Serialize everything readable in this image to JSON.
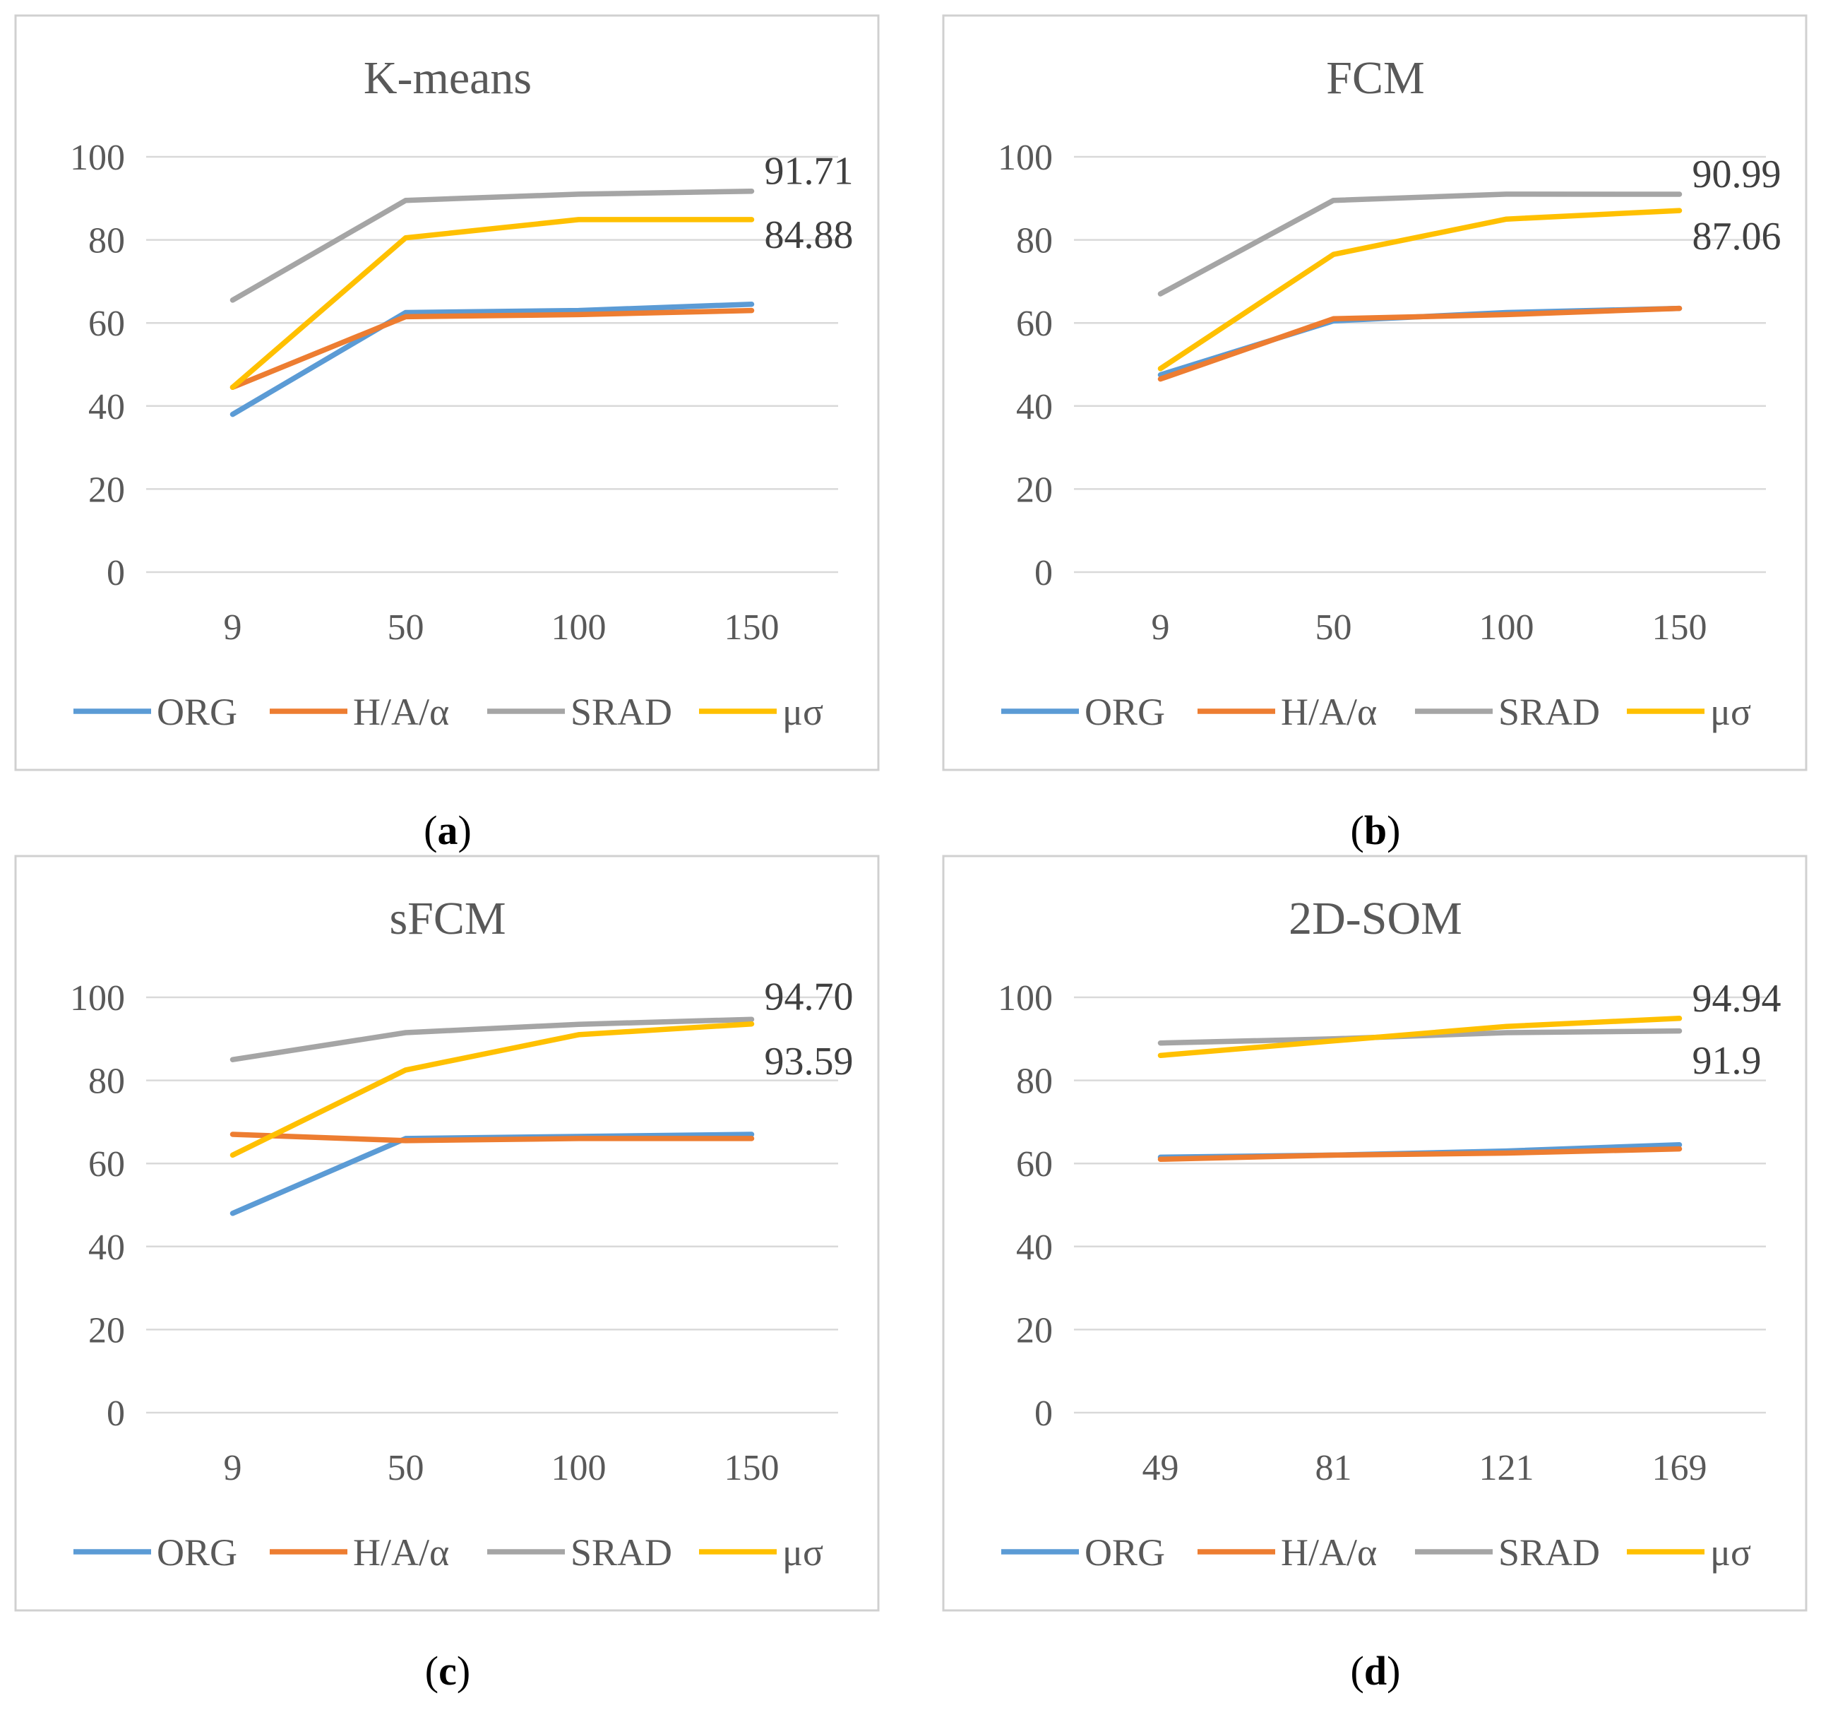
{
  "figure": {
    "colors": {
      "ORG": "#5B9BD5",
      "H/A/α": "#ED7D31",
      "SRAD": "#A5A5A5",
      "μσ": "#FFC000",
      "grid": "#D9D9D9",
      "border": "#D0D0D0",
      "text": "#595959"
    }
  },
  "chart_data": [
    {
      "type": "line",
      "panel": "a",
      "panel_label": "a",
      "title": "K-means",
      "categories": [
        "9",
        "50",
        "100",
        "150"
      ],
      "ylim": [
        0,
        100
      ],
      "yticks": [
        0,
        20,
        40,
        60,
        80,
        100
      ],
      "series": [
        {
          "name": "ORG",
          "values": [
            38,
            62.5,
            63,
            64.5
          ]
        },
        {
          "name": "H/A/α",
          "values": [
            44.5,
            61.5,
            62,
            63
          ]
        },
        {
          "name": "SRAD",
          "values": [
            65.5,
            89.5,
            91,
            91.71
          ]
        },
        {
          "name": "μσ",
          "values": [
            44.5,
            80.5,
            84.88,
            84.88
          ]
        }
      ],
      "annotations": [
        {
          "text": "91.71",
          "series": "SRAD"
        },
        {
          "text": "84.88",
          "series": "μσ"
        }
      ],
      "legend": "bottom"
    },
    {
      "type": "line",
      "panel": "b",
      "panel_label": "b",
      "title": "FCM",
      "categories": [
        "9",
        "50",
        "100",
        "150"
      ],
      "ylim": [
        0,
        100
      ],
      "yticks": [
        0,
        20,
        40,
        60,
        80,
        100
      ],
      "series": [
        {
          "name": "ORG",
          "values": [
            47.5,
            60.5,
            62.5,
            63.5
          ]
        },
        {
          "name": "H/A/α",
          "values": [
            46.5,
            61,
            62,
            63.5
          ]
        },
        {
          "name": "SRAD",
          "values": [
            67,
            89.5,
            91,
            90.99
          ]
        },
        {
          "name": "μσ",
          "values": [
            49,
            76.5,
            85,
            87.06
          ]
        }
      ],
      "annotations": [
        {
          "text": "90.99",
          "series": "SRAD"
        },
        {
          "text": "87.06",
          "series": "μσ"
        }
      ],
      "legend": "bottom"
    },
    {
      "type": "line",
      "panel": "c",
      "panel_label": "c",
      "title": "sFCM",
      "categories": [
        "9",
        "50",
        "100",
        "150"
      ],
      "ylim": [
        0,
        100
      ],
      "yticks": [
        0,
        20,
        40,
        60,
        80,
        100
      ],
      "series": [
        {
          "name": "ORG",
          "values": [
            48,
            66,
            66.5,
            67
          ]
        },
        {
          "name": "H/A/α",
          "values": [
            67,
            65.5,
            66,
            66
          ]
        },
        {
          "name": "SRAD",
          "values": [
            85,
            91.5,
            93.5,
            94.7
          ]
        },
        {
          "name": "μσ",
          "values": [
            62,
            82.5,
            91,
            93.59
          ]
        }
      ],
      "annotations": [
        {
          "text": "94.70",
          "series": "SRAD"
        },
        {
          "text": "93.59",
          "series": "μσ"
        }
      ],
      "legend": "bottom"
    },
    {
      "type": "line",
      "panel": "d",
      "panel_label": "d",
      "title": "2D-SOM",
      "categories": [
        "49",
        "81",
        "121",
        "169"
      ],
      "ylim": [
        0,
        100
      ],
      "yticks": [
        0,
        20,
        40,
        60,
        80,
        100
      ],
      "series": [
        {
          "name": "ORG",
          "values": [
            61.5,
            62,
            63,
            64.5
          ]
        },
        {
          "name": "H/A/α",
          "values": [
            61,
            62,
            62.5,
            63.5
          ]
        },
        {
          "name": "SRAD",
          "values": [
            89,
            90,
            91.5,
            91.9
          ]
        },
        {
          "name": "μσ",
          "values": [
            86,
            89.5,
            93,
            94.94
          ]
        }
      ],
      "annotations": [
        {
          "text": "94.94",
          "series": "μσ"
        },
        {
          "text": "91.9",
          "series": "SRAD"
        }
      ],
      "legend": "bottom"
    }
  ]
}
